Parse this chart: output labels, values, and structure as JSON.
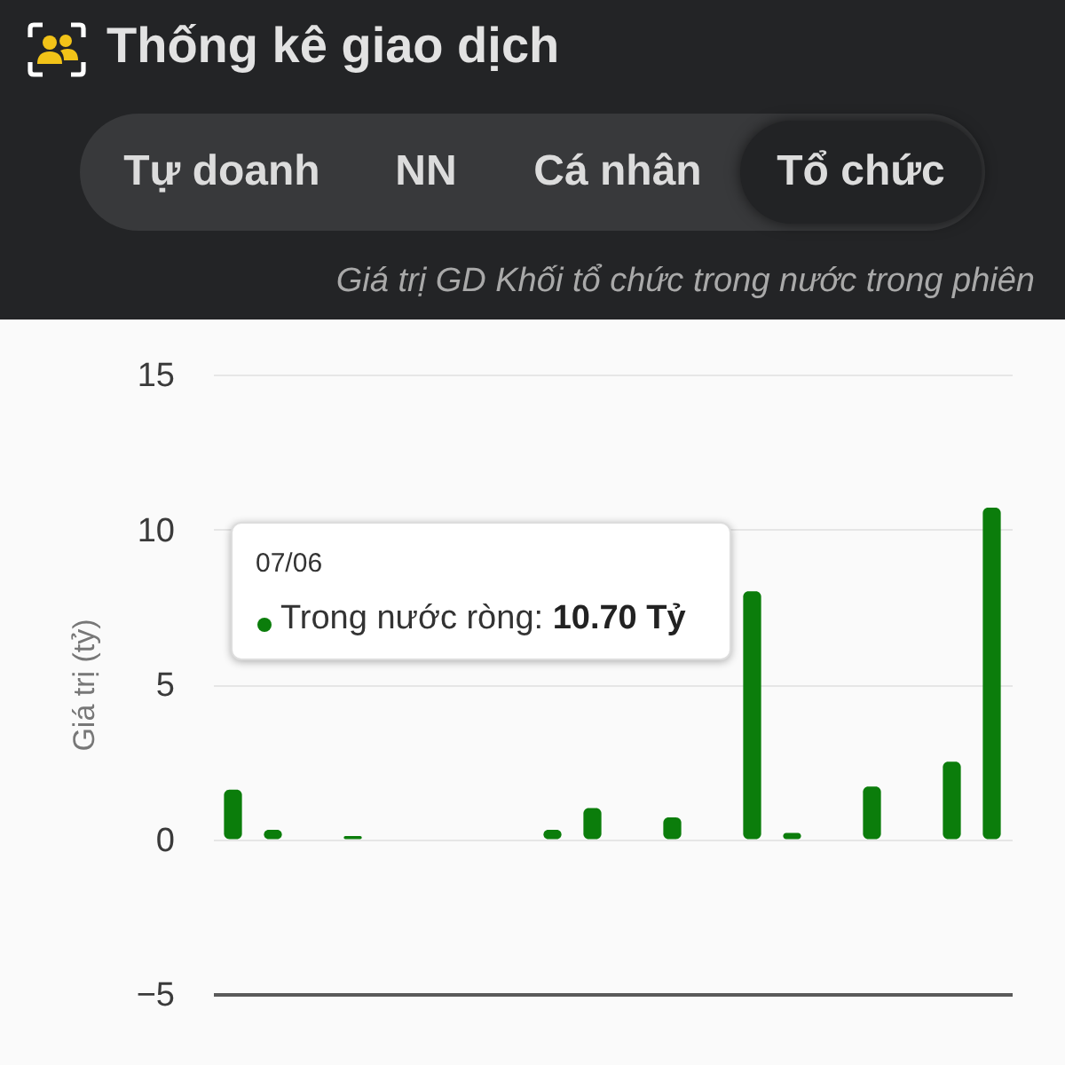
{
  "chart_data": {
    "type": "bar",
    "title": "Thống kê giao dịch",
    "subtitle": "Giá trị GD Khối tổ chức trong nước trong phiên",
    "ylabel": "Giá trị (tỷ)",
    "categories": [
      null,
      null,
      null,
      null,
      null,
      null,
      null,
      null,
      null,
      null,
      null,
      null,
      null,
      null,
      null,
      null,
      null,
      null,
      null,
      null
    ],
    "values": [
      1.6,
      0.3,
      0,
      0.1,
      0,
      0,
      0,
      0,
      0.3,
      1.0,
      0,
      0.7,
      0,
      8,
      0.2,
      0,
      1.7,
      0,
      2.5,
      10.7
    ],
    "color": "#0b7d0b",
    "ylim": [
      -5,
      15
    ],
    "yticks": [
      -5,
      0,
      5,
      10,
      15
    ],
    "grid": "y",
    "tick_labels": "y",
    "annotations": [
      "Tự doanh",
      "NN",
      "Cá nhân",
      "Tổ chức",
      "07/06",
      "Trong nước ròng:",
      "10.70 Tỷ"
    ]
  }
}
